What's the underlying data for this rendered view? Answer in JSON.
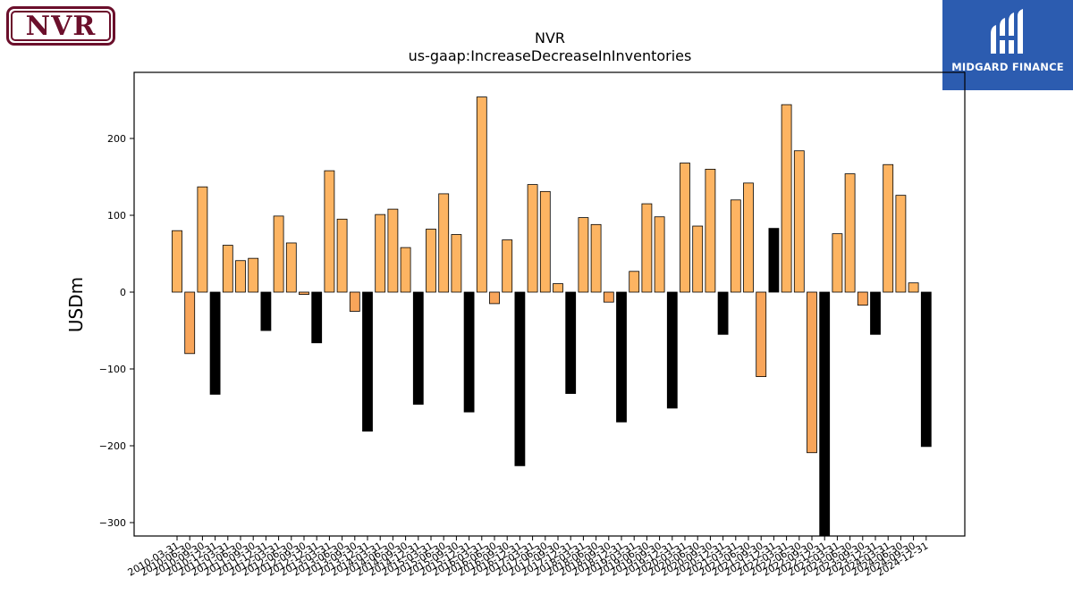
{
  "logos": {
    "company": "NVR",
    "watermark": "MIDGARD FINANCE"
  },
  "colors": {
    "positive": "#fdb462",
    "negative": "#f8a55a",
    "q4_bar": "#000000",
    "nvr_brand": "#6b0f2b",
    "midgard_bg": "#2c5cb0"
  },
  "chart_data": {
    "type": "bar",
    "title": "NVR",
    "subtitle": "us-gaap:IncreaseDecreaseInInventories",
    "xlabel": "",
    "ylabel": "USDm",
    "ylim": [
      -318,
      285
    ],
    "yticks": [
      -300,
      -200,
      -100,
      0,
      100,
      200
    ],
    "grid": false,
    "categories": [
      "2010-03-31",
      "2010-06-30",
      "2010-09-30",
      "2010-12-31",
      "2011-03-31",
      "2011-06-30",
      "2011-09-30",
      "2011-12-31",
      "2012-03-31",
      "2012-06-30",
      "2012-09-30",
      "2012-12-31",
      "2013-03-31",
      "2013-06-30",
      "2013-09-30",
      "2013-12-31",
      "2014-03-31",
      "2014-06-30",
      "2014-09-30",
      "2014-12-31",
      "2015-03-31",
      "2015-06-30",
      "2015-09-30",
      "2015-12-31",
      "2016-03-31",
      "2016-06-30",
      "2016-09-30",
      "2016-12-31",
      "2017-03-31",
      "2017-06-30",
      "2017-09-30",
      "2017-12-31",
      "2018-03-31",
      "2018-06-30",
      "2018-09-30",
      "2018-12-31",
      "2019-03-31",
      "2019-06-30",
      "2019-09-30",
      "2019-12-31",
      "2020-03-31",
      "2020-06-30",
      "2020-09-30",
      "2020-12-31",
      "2021-03-31",
      "2021-06-30",
      "2021-09-30",
      "2021-12-31",
      "2022-03-31",
      "2022-06-30",
      "2022-09-30",
      "2022-12-31",
      "2023-03-31",
      "2023-06-30",
      "2023-09-30",
      "2023-12-31",
      "2024-03-31",
      "2024-06-30",
      "2024-09-30",
      "2024-12-31"
    ],
    "values": [
      80,
      -80,
      137,
      -133,
      61,
      41,
      44,
      -50,
      99,
      64,
      -3,
      -66,
      158,
      95,
      -25,
      -181,
      101,
      108,
      58,
      -146,
      82,
      128,
      75,
      -156,
      254,
      -15,
      68,
      -226,
      140,
      131,
      11,
      -132,
      97,
      88,
      -13,
      -169,
      27,
      115,
      98,
      -151,
      168,
      86,
      160,
      -55,
      120,
      142,
      -110,
      83,
      244,
      184,
      -209,
      -320,
      76,
      154,
      -17,
      -55,
      166,
      126,
      12,
      -201
    ]
  }
}
